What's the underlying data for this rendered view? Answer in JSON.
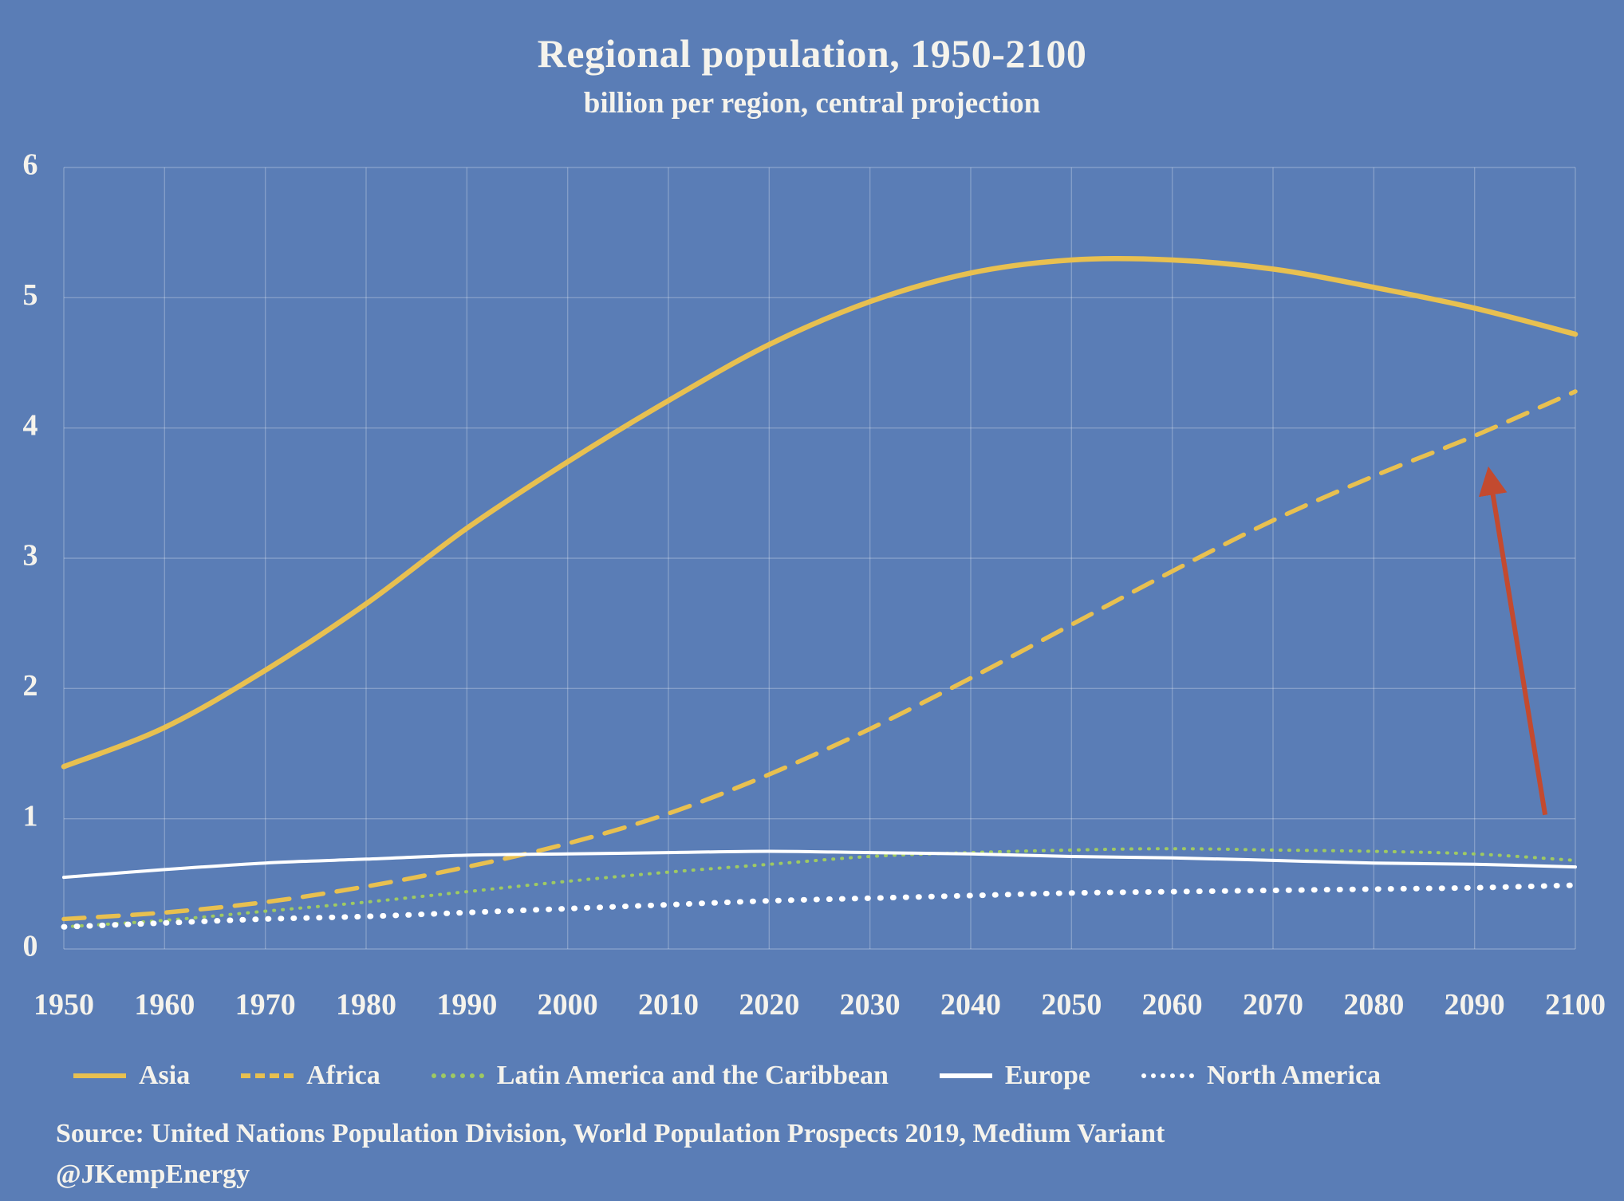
{
  "header": {
    "title": "Regional population, 1950-2100",
    "subtitle": "billion per region, central projection"
  },
  "footer": {
    "source_line": "Source: United Nations Population Division, World Population Prospects 2019, Medium Variant",
    "handle_line": "@JKempEnergy"
  },
  "colors": {
    "background": "#5a7db6",
    "grid": "rgba(255,255,255,0.25)",
    "text": "#f5f3ec",
    "arrow": "#c34a2f"
  },
  "chart_data": {
    "type": "line",
    "title": "Regional population, 1950-2100",
    "subtitle": "billion per region, central projection",
    "xlabel": "",
    "ylabel": "",
    "xlim": [
      1950,
      2100
    ],
    "ylim": [
      0,
      6
    ],
    "x_step": 10,
    "y_step": 1,
    "grid": true,
    "legend_position": "bottom",
    "x": [
      1950,
      1960,
      1970,
      1980,
      1990,
      2000,
      2010,
      2020,
      2030,
      2040,
      2050,
      2060,
      2070,
      2080,
      2090,
      2100
    ],
    "series": [
      {
        "name": "Asia",
        "color": "#e8c050",
        "style": "solid",
        "width": 6.5,
        "values": [
          1.4,
          1.7,
          2.14,
          2.65,
          3.23,
          3.74,
          4.21,
          4.64,
          4.97,
          5.19,
          5.29,
          5.29,
          5.22,
          5.08,
          4.92,
          4.72
        ]
      },
      {
        "name": "Africa",
        "color": "#e8c050",
        "style": "dashed",
        "width": 5.5,
        "values": [
          0.23,
          0.28,
          0.36,
          0.48,
          0.63,
          0.81,
          1.04,
          1.34,
          1.69,
          2.08,
          2.49,
          2.9,
          3.29,
          3.63,
          3.94,
          4.28
        ]
      },
      {
        "name": "Latin America and the Caribbean",
        "color": "#9fca62",
        "style": "dotted-fine",
        "width": 4,
        "values": [
          0.17,
          0.22,
          0.29,
          0.36,
          0.44,
          0.52,
          0.59,
          0.65,
          0.71,
          0.74,
          0.76,
          0.77,
          0.76,
          0.75,
          0.73,
          0.68
        ]
      },
      {
        "name": "Europe",
        "color": "#ffffff",
        "style": "solid",
        "width": 4,
        "values": [
          0.55,
          0.61,
          0.66,
          0.69,
          0.72,
          0.73,
          0.74,
          0.75,
          0.74,
          0.73,
          0.71,
          0.7,
          0.68,
          0.66,
          0.65,
          0.63
        ]
      },
      {
        "name": "North America",
        "color": "#ffffff",
        "style": "dotted",
        "width": 7,
        "values": [
          0.17,
          0.2,
          0.23,
          0.25,
          0.28,
          0.31,
          0.34,
          0.37,
          0.39,
          0.41,
          0.43,
          0.44,
          0.45,
          0.46,
          0.47,
          0.49
        ]
      }
    ],
    "annotation": {
      "type": "arrow",
      "color": "#c34a2f",
      "from_x": 2097,
      "from_y": 1.03,
      "to_x": 2091.5,
      "to_y": 3.64
    }
  }
}
